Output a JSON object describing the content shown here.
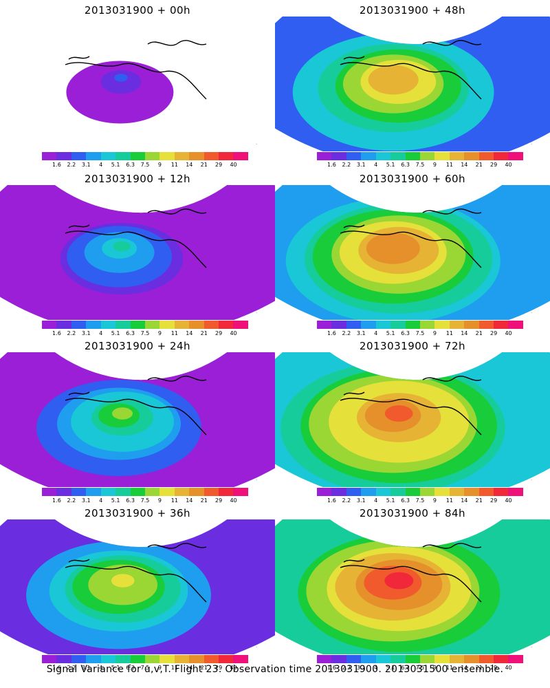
{
  "caption": "Signal Variance for u,v,T. Flight 23. Observation time 2013031900. 2013031500 ensemble.",
  "colorbar": {
    "colors": [
      "#9b1fd6",
      "#6a2ee0",
      "#2f5ef0",
      "#1f9ef0",
      "#19c7d6",
      "#16cc9a",
      "#19cc3a",
      "#9ad634",
      "#e6e03a",
      "#e6b334",
      "#e6902c",
      "#f05a2c",
      "#f0283a",
      "#f0107a"
    ],
    "tick_labels": [
      "1.6",
      "2.2",
      "3.1",
      "4",
      "5.1",
      "6.3",
      "7.5",
      "9",
      "11",
      "14",
      "21",
      "29",
      "40"
    ]
  },
  "panels": [
    {
      "title": "2013031900 + 00h",
      "intensity": 0.15
    },
    {
      "title": "2013031900 + 48h",
      "intensity": 0.72
    },
    {
      "title": "2013031900 + 12h",
      "intensity": 0.35
    },
    {
      "title": "2013031900 + 60h",
      "intensity": 0.8
    },
    {
      "title": "2013031900 + 24h",
      "intensity": 0.5
    },
    {
      "title": "2013031900 + 72h",
      "intensity": 0.86
    },
    {
      "title": "2013031900 + 36h",
      "intensity": 0.62
    },
    {
      "title": "2013031900 + 84h",
      "intensity": 0.9
    }
  ]
}
